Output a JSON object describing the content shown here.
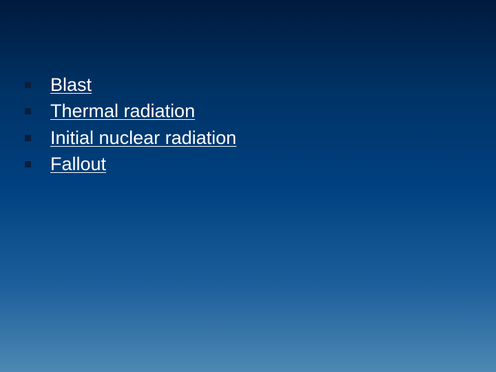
{
  "slide": {
    "background": {
      "gradient_stops": [
        "#001a3d",
        "#003366",
        "#004080",
        "#1a5c99",
        "#4d88b3"
      ]
    },
    "bullet_color": "#0a1f3d",
    "text_color": "#ffffff",
    "text_fontsize": 27,
    "items": [
      {
        "label": "Blast"
      },
      {
        "label": "Thermal radiation"
      },
      {
        "label": "Initial nuclear radiation"
      },
      {
        "label": "Fallout"
      }
    ]
  }
}
